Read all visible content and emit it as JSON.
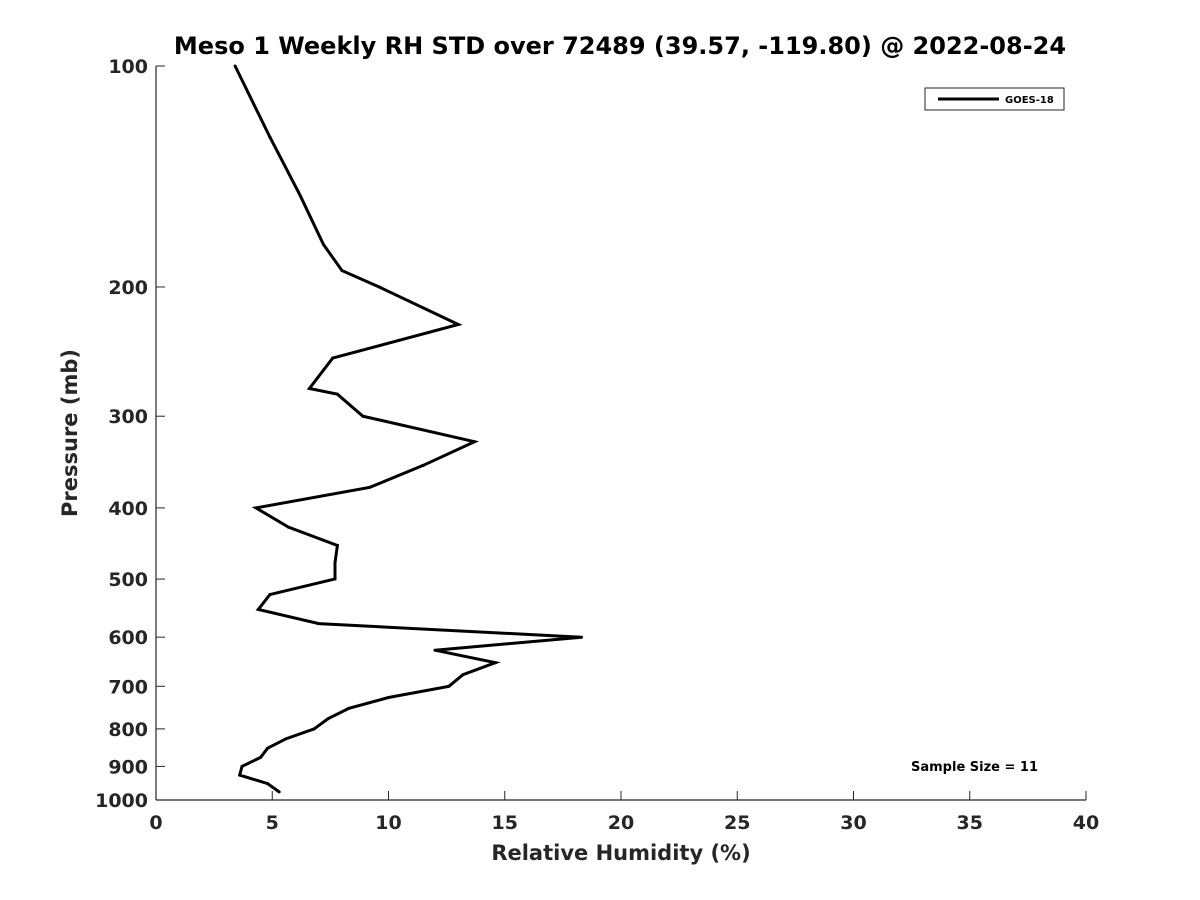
{
  "chart_data": {
    "type": "line",
    "title": "Meso 1 Weekly RH STD over 72489 (39.57, -119.80) @ 2022-08-24",
    "xlabel": "Relative Humidity (%)",
    "ylabel": "Pressure (mb)",
    "xlim": [
      0,
      40
    ],
    "ylim": [
      100,
      1000
    ],
    "y_scale": "log",
    "y_reversed": true,
    "xticks": [
      0,
      5,
      10,
      15,
      20,
      25,
      30,
      35,
      40
    ],
    "yticks": [
      100,
      200,
      300,
      400,
      500,
      600,
      700,
      800,
      900,
      1000
    ],
    "grid": false,
    "legend_position": "top-right",
    "series": [
      {
        "name": "GOES-18",
        "color": "#000000",
        "points": [
          {
            "x": 3.4,
            "y": 100
          },
          {
            "x": 4.9,
            "y": 125
          },
          {
            "x": 6.2,
            "y": 150
          },
          {
            "x": 7.2,
            "y": 175
          },
          {
            "x": 8.0,
            "y": 190
          },
          {
            "x": 9.6,
            "y": 200
          },
          {
            "x": 13.0,
            "y": 225
          },
          {
            "x": 7.6,
            "y": 250
          },
          {
            "x": 6.6,
            "y": 275
          },
          {
            "x": 7.8,
            "y": 280
          },
          {
            "x": 8.9,
            "y": 300
          },
          {
            "x": 13.7,
            "y": 325
          },
          {
            "x": 11.5,
            "y": 350
          },
          {
            "x": 9.2,
            "y": 375
          },
          {
            "x": 4.3,
            "y": 400
          },
          {
            "x": 5.7,
            "y": 425
          },
          {
            "x": 7.8,
            "y": 450
          },
          {
            "x": 7.7,
            "y": 475
          },
          {
            "x": 7.7,
            "y": 500
          },
          {
            "x": 4.9,
            "y": 525
          },
          {
            "x": 4.4,
            "y": 550
          },
          {
            "x": 7.0,
            "y": 575
          },
          {
            "x": 18.3,
            "y": 600
          },
          {
            "x": 12.0,
            "y": 625
          },
          {
            "x": 14.6,
            "y": 650
          },
          {
            "x": 13.2,
            "y": 675
          },
          {
            "x": 12.6,
            "y": 700
          },
          {
            "x": 10.0,
            "y": 725
          },
          {
            "x": 8.3,
            "y": 750
          },
          {
            "x": 7.4,
            "y": 775
          },
          {
            "x": 6.8,
            "y": 800
          },
          {
            "x": 5.6,
            "y": 825
          },
          {
            "x": 4.8,
            "y": 850
          },
          {
            "x": 4.5,
            "y": 875
          },
          {
            "x": 3.7,
            "y": 900
          },
          {
            "x": 3.6,
            "y": 925
          },
          {
            "x": 4.8,
            "y": 950
          },
          {
            "x": 5.3,
            "y": 975
          }
        ]
      }
    ],
    "legend": [
      {
        "label": "GOES-18",
        "color": "#000000"
      }
    ],
    "annotation": "Sample Size = 11"
  }
}
